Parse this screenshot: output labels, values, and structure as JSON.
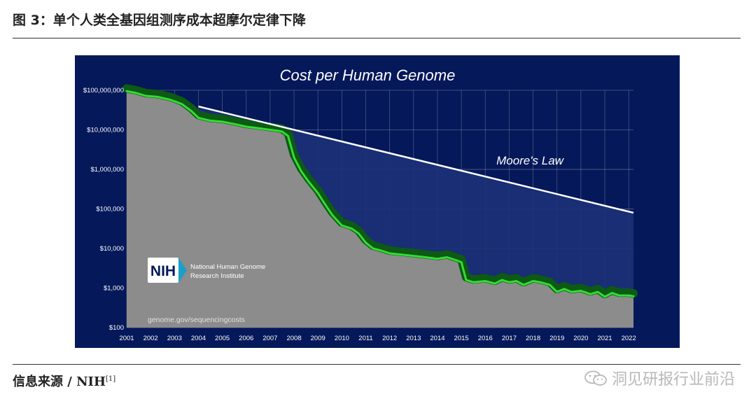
{
  "figure_title": "图 3：单个人类全基因组测序成本超摩尔定律下降",
  "source": {
    "label": "信息来源 / NIH",
    "ref": "[1]"
  },
  "watermark": {
    "text": "洞见研报行业前沿",
    "icon": "wechat-icon"
  },
  "nih_logo": {
    "mark": "NIH",
    "line1": "National Human Genome",
    "line2": "Research Institute"
  },
  "url_text": "genome.gov/sequencingcosts",
  "colors": {
    "panel_bg": "#04185a",
    "area_fill": "#8c8c8c",
    "band_dark": "#0c5a14",
    "band_line": "#33dd33",
    "moore_line": "#ffffff",
    "gap_fill": "#1c3177"
  },
  "chart_data": {
    "type": "area",
    "title": "Cost per Human Genome",
    "y_scale": "log",
    "ylim": [
      100,
      150000000
    ],
    "xlim": [
      2001,
      2022.2
    ],
    "x_ticks": [
      "2001",
      "2002",
      "2003",
      "2004",
      "2005",
      "2006",
      "2007",
      "2008",
      "2009",
      "2010",
      "2011",
      "2012",
      "2013",
      "2014",
      "2015",
      "2016",
      "2017",
      "2018",
      "2019",
      "2020",
      "2021",
      "2022"
    ],
    "y_ticks": [
      {
        "value": 100000000,
        "label": "$100,000,000"
      },
      {
        "value": 10000000,
        "label": "$10,000,000"
      },
      {
        "value": 1000000,
        "label": "$1,000,000"
      },
      {
        "value": 100000,
        "label": "$100,000"
      },
      {
        "value": 10000,
        "label": "$10,000"
      },
      {
        "value": 1000,
        "label": "$1,000"
      },
      {
        "value": 100,
        "label": "$100"
      }
    ],
    "grid": true,
    "series": [
      {
        "name": "",
        "x": [
          2001.0,
          2001.4,
          2001.8,
          2002.3,
          2002.8,
          2003.3,
          2003.7,
          2004.0,
          2004.5,
          2005.0,
          2005.5,
          2006.0,
          2006.5,
          2007.0,
          2007.3,
          2007.5,
          2007.75,
          2008.0,
          2008.3,
          2008.6,
          2009.0,
          2009.3,
          2009.6,
          2010.0,
          2010.4,
          2010.7,
          2011.0,
          2011.3,
          2011.6,
          2012.0,
          2012.5,
          2013.0,
          2013.5,
          2014.0,
          2014.4,
          2014.8,
          2015.0,
          2015.2,
          2015.5,
          2016.0,
          2016.4,
          2016.7,
          2017.0,
          2017.3,
          2017.6,
          2018.0,
          2018.3,
          2018.7,
          2019.0,
          2019.3,
          2019.6,
          2020.0,
          2020.4,
          2020.7,
          2021.0,
          2021.3,
          2021.6,
          2022.0,
          2022.2
        ],
        "values": [
          95000000,
          85000000,
          72000000,
          68000000,
          58000000,
          45000000,
          30000000,
          20000000,
          17000000,
          16000000,
          14000000,
          12000000,
          11000000,
          10000000,
          9500000,
          9000000,
          7000000,
          2000000,
          900000,
          500000,
          250000,
          130000,
          70000,
          38000,
          32000,
          24000,
          14000,
          10000,
          9000,
          7500,
          7000,
          6500,
          6000,
          5500,
          6000,
          5000,
          4500,
          1600,
          1400,
          1500,
          1300,
          1600,
          1400,
          1500,
          1200,
          1500,
          1400,
          1200,
          800,
          950,
          800,
          850,
          700,
          800,
          600,
          750,
          650,
          650,
          620
        ]
      },
      {
        "name": "Moore's Law",
        "x": [
          2004.0,
          2022.2
        ],
        "values": [
          39000000,
          80000
        ]
      }
    ],
    "annotations": [
      "Moore's Law"
    ]
  }
}
